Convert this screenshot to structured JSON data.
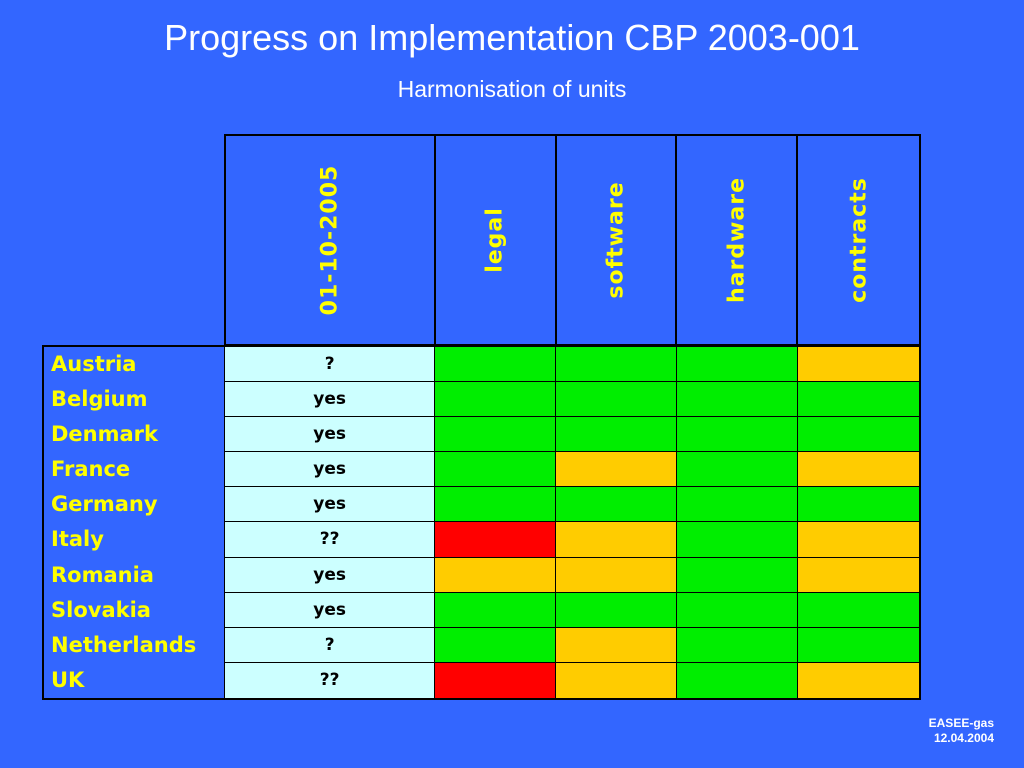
{
  "title": "Progress on Implementation CBP 2003-001",
  "subtitle": "Harmonisation of units",
  "columns": [
    "01-10-2005",
    "legal",
    "software",
    "hardware",
    "contracts"
  ],
  "colors": {
    "background": "#3366ff",
    "green": "#00ee00",
    "amber": "#ffcc00",
    "red": "#ff0000",
    "date_cell": "#ccffff",
    "text_yellow": "#ffff00"
  },
  "rows": [
    {
      "country": "Austria",
      "date": "?",
      "status": [
        "green",
        "green",
        "green",
        "amber"
      ]
    },
    {
      "country": "Belgium",
      "date": "yes",
      "status": [
        "green",
        "green",
        "green",
        "green"
      ]
    },
    {
      "country": "Denmark",
      "date": "yes",
      "status": [
        "green",
        "green",
        "green",
        "green"
      ]
    },
    {
      "country": "France",
      "date": "yes",
      "status": [
        "green",
        "amber",
        "green",
        "amber"
      ]
    },
    {
      "country": "Germany",
      "date": "yes",
      "status": [
        "green",
        "green",
        "green",
        "green"
      ]
    },
    {
      "country": "Italy",
      "date": "??",
      "status": [
        "red",
        "amber",
        "green",
        "amber"
      ]
    },
    {
      "country": "Romania",
      "date": "yes",
      "status": [
        "amber",
        "amber",
        "green",
        "amber"
      ]
    },
    {
      "country": "Slovakia",
      "date": "yes",
      "status": [
        "green",
        "green",
        "green",
        "green"
      ]
    },
    {
      "country": "Netherlands",
      "date": "?",
      "status": [
        "green",
        "amber",
        "green",
        "green"
      ]
    },
    {
      "country": "UK",
      "date": "??",
      "status": [
        "red",
        "amber",
        "green",
        "amber"
      ]
    }
  ],
  "footer": {
    "line1": "EASEE-gas",
    "line2": "12.04.2004"
  }
}
